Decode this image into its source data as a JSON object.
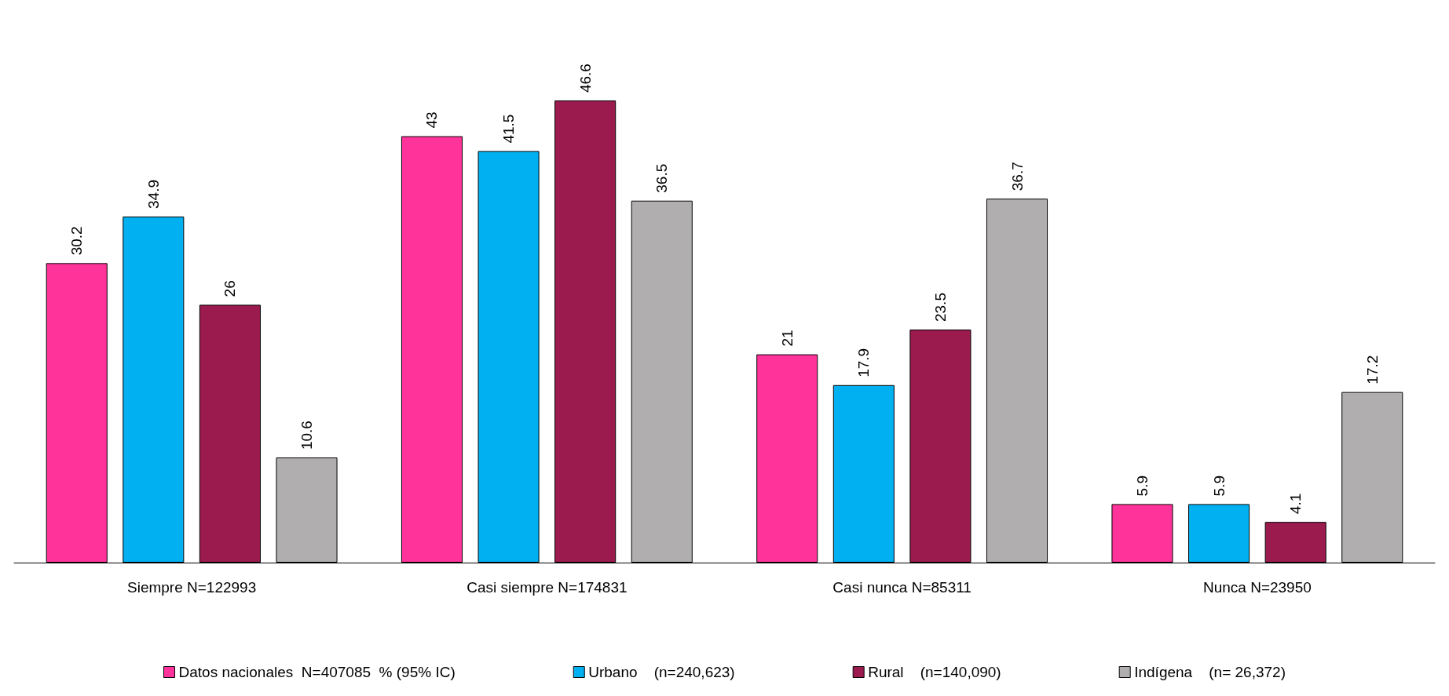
{
  "chart_data": {
    "type": "bar",
    "categories": [
      "Siempre N=122993",
      "Casi siempre N=174831",
      "Casi nunca N=85311",
      "Nunca N=23950"
    ],
    "series": [
      {
        "name": "Datos nacionales  N=407085  % (95% IC)",
        "color": "#ff3399",
        "values": [
          30.2,
          43,
          21,
          5.9
        ]
      },
      {
        "name": "Urbano    (n=240,623)",
        "color": "#00b0f0",
        "values": [
          34.9,
          41.5,
          17.9,
          5.9
        ]
      },
      {
        "name": "Rural    (n=140,090)",
        "color": "#9b1b4e",
        "values": [
          26,
          46.6,
          23.5,
          4.1
        ]
      },
      {
        "name": "Indígena    (n= 26,372)",
        "color": "#b0aeae",
        "values": [
          10.6,
          36.5,
          36.7,
          17.2
        ]
      }
    ],
    "data_labels": true,
    "legend": "bottom",
    "grid": false
  }
}
